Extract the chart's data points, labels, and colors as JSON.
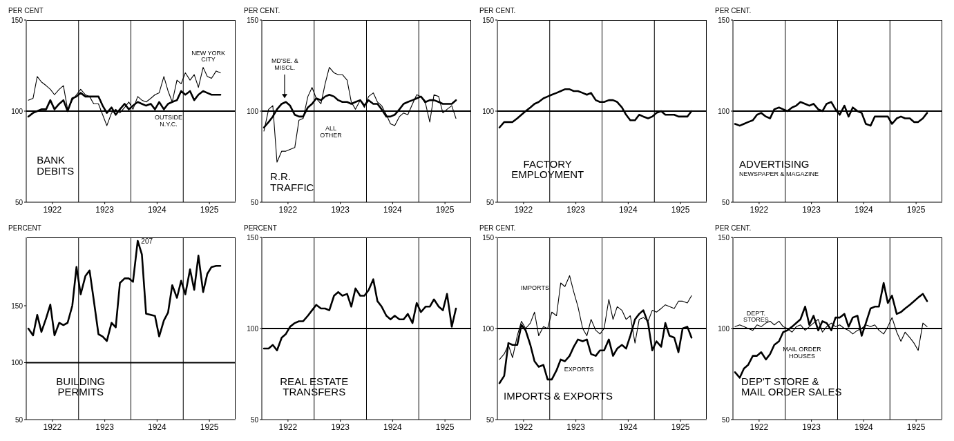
{
  "chart_data": [
    {
      "type": "line",
      "title": "BANK\nDEBITS",
      "ylabel": "PER CENT",
      "x": [
        1922.04,
        1922.13,
        1922.21,
        1922.29,
        1922.38,
        1922.46,
        1922.54,
        1922.63,
        1922.71,
        1922.79,
        1922.88,
        1922.96,
        1923.04,
        1923.13,
        1923.21,
        1923.29,
        1923.38,
        1923.46,
        1923.54,
        1923.63,
        1923.71,
        1923.79,
        1923.88,
        1923.96,
        1924.04,
        1924.13,
        1924.21,
        1924.29,
        1924.38,
        1924.46,
        1924.54,
        1924.63,
        1924.71,
        1924.79,
        1924.88,
        1924.96,
        1925.04,
        1925.13,
        1925.21,
        1925.29,
        1925.38,
        1925.46,
        1925.54,
        1925.63,
        1925.71
      ],
      "series": [
        {
          "name": "OUTSIDE\nN.Y.C.",
          "color": "#000000",
          "values": [
            97,
            99,
            100,
            101,
            101,
            106,
            101,
            104,
            106,
            100,
            107,
            108,
            110,
            108,
            108,
            108,
            108,
            103,
            99,
            102,
            98,
            101,
            104,
            101,
            103,
            105,
            104,
            103,
            104,
            101,
            105,
            101,
            104,
            105,
            106,
            111,
            109,
            111,
            106,
            109,
            111,
            110,
            109,
            109,
            109
          ]
        },
        {
          "name": "NEW YORK\nCITY",
          "color": "#000000",
          "values": [
            106,
            107,
            119,
            116,
            114,
            112,
            109,
            112,
            114,
            101,
            106,
            109,
            112,
            109,
            108,
            104,
            104,
            98,
            92,
            99,
            101,
            99,
            102,
            105,
            101,
            108,
            106,
            105,
            107,
            109,
            110,
            119,
            111,
            105,
            117,
            115,
            121,
            117,
            120,
            113,
            124,
            119,
            118,
            122,
            121
          ]
        }
      ],
      "xlim": [
        1922,
        1926
      ],
      "ylim": [
        50,
        150
      ],
      "yticks": [
        50,
        100,
        150
      ],
      "xticks": [
        {
          "value": 1922.5,
          "label": "1922"
        },
        {
          "value": 1923.5,
          "label": "1923"
        },
        {
          "value": 1924.5,
          "label": "1924"
        },
        {
          "value": 1925.5,
          "label": "1925"
        }
      ],
      "ref_lines": [
        {
          "axis": "y",
          "value": 100
        },
        {
          "axis": "x",
          "value": 1923
        },
        {
          "axis": "x",
          "value": 1924
        },
        {
          "axis": "x",
          "value": 1925
        }
      ]
    },
    {
      "type": "line",
      "title": "R.R.\nTRAFFIC",
      "ylabel": "PER CENT.",
      "x": [
        1922.04,
        1922.13,
        1922.21,
        1922.29,
        1922.38,
        1922.46,
        1922.54,
        1922.63,
        1922.71,
        1922.79,
        1922.88,
        1922.96,
        1923.04,
        1923.13,
        1923.21,
        1923.29,
        1923.38,
        1923.46,
        1923.54,
        1923.63,
        1923.71,
        1923.79,
        1923.88,
        1923.96,
        1924.04,
        1924.13,
        1924.21,
        1924.29,
        1924.38,
        1924.46,
        1924.54,
        1924.63,
        1924.71,
        1924.79,
        1924.88,
        1924.96,
        1925.04,
        1925.13,
        1925.21,
        1925.29,
        1925.38,
        1925.46,
        1925.54,
        1925.63,
        1925.71
      ],
      "series": [
        {
          "name": "MD'SE. &\nMISCL.",
          "color": "#000000",
          "values": [
            91,
            94,
            97,
            101,
            104,
            105,
            103,
            98,
            97,
            97,
            102,
            104,
            107,
            106,
            108,
            109,
            108,
            106,
            105,
            105,
            104,
            105,
            106,
            103,
            106,
            104,
            104,
            101,
            97,
            97,
            98,
            101,
            104,
            105,
            106,
            107,
            108,
            105,
            106,
            106,
            105,
            104,
            104,
            104,
            106
          ]
        },
        {
          "name": "ALL\nOTHER",
          "color": "#000000",
          "values": [
            89,
            101,
            103,
            72,
            78,
            78,
            79,
            80,
            95,
            96,
            108,
            113,
            107,
            104,
            115,
            124,
            121,
            120,
            120,
            117,
            105,
            101,
            106,
            102,
            108,
            110,
            105,
            103,
            98,
            93,
            92,
            97,
            99,
            98,
            104,
            109,
            108,
            104,
            94,
            109,
            108,
            99,
            101,
            103,
            96
          ]
        }
      ],
      "xlim": [
        1922,
        1926
      ],
      "ylim": [
        50,
        150
      ],
      "yticks": [
        50,
        100,
        150
      ],
      "xticks": [
        {
          "value": 1922.5,
          "label": "1922"
        },
        {
          "value": 1923.5,
          "label": "1923"
        },
        {
          "value": 1924.5,
          "label": "1924"
        },
        {
          "value": 1925.5,
          "label": "1925"
        }
      ],
      "ref_lines": [
        {
          "axis": "y",
          "value": 100
        },
        {
          "axis": "x",
          "value": 1923
        },
        {
          "axis": "x",
          "value": 1924
        },
        {
          "axis": "x",
          "value": 1925
        }
      ]
    },
    {
      "type": "line",
      "title": "FACTORY\nEMPLOYMENT",
      "ylabel": "PER CENT.",
      "x": [
        1922.04,
        1922.13,
        1922.21,
        1922.29,
        1922.38,
        1922.46,
        1922.54,
        1922.63,
        1922.71,
        1922.79,
        1922.88,
        1922.96,
        1923.04,
        1923.13,
        1923.21,
        1923.29,
        1923.38,
        1923.46,
        1923.54,
        1923.63,
        1923.71,
        1923.79,
        1923.88,
        1923.96,
        1924.04,
        1924.13,
        1924.21,
        1924.29,
        1924.38,
        1924.46,
        1924.54,
        1924.63,
        1924.71,
        1924.79,
        1924.88,
        1924.96,
        1925.04,
        1925.13,
        1925.21,
        1925.29,
        1925.38,
        1925.46,
        1925.54,
        1925.63,
        1925.71
      ],
      "series": [
        {
          "color": "#000000",
          "values": [
            91,
            94,
            94,
            94,
            96,
            98,
            100,
            102,
            104,
            105,
            107,
            108,
            109,
            110,
            111,
            112,
            112,
            111,
            111,
            110,
            109,
            110,
            106,
            105,
            105,
            106,
            106,
            105,
            102,
            98,
            95,
            95,
            98,
            97,
            96,
            97,
            99,
            100,
            98,
            98,
            98,
            97,
            97,
            97,
            100
          ]
        }
      ],
      "xlim": [
        1922,
        1926
      ],
      "ylim": [
        50,
        150
      ],
      "yticks": [
        50,
        100,
        150
      ],
      "xticks": [
        {
          "value": 1922.5,
          "label": "1922"
        },
        {
          "value": 1923.5,
          "label": "1923"
        },
        {
          "value": 1924.5,
          "label": "1924"
        },
        {
          "value": 1925.5,
          "label": "1925"
        }
      ],
      "ref_lines": [
        {
          "axis": "y",
          "value": 100
        },
        {
          "axis": "x",
          "value": 1923
        },
        {
          "axis": "x",
          "value": 1924
        },
        {
          "axis": "x",
          "value": 1925
        }
      ]
    },
    {
      "type": "line",
      "title": "ADVERTISING",
      "subtitle": "NEWSPAPER & MAGAZINE",
      "ylabel": "PER CENT.",
      "x": [
        1922.04,
        1922.13,
        1922.21,
        1922.29,
        1922.38,
        1922.46,
        1922.54,
        1922.63,
        1922.71,
        1922.79,
        1922.88,
        1922.96,
        1923.04,
        1923.13,
        1923.21,
        1923.29,
        1923.38,
        1923.46,
        1923.54,
        1923.63,
        1923.71,
        1923.79,
        1923.88,
        1923.96,
        1924.04,
        1924.13,
        1924.21,
        1924.29,
        1924.38,
        1924.46,
        1924.54,
        1924.63,
        1924.71,
        1924.79,
        1924.88,
        1924.96,
        1925.04,
        1925.13,
        1925.21,
        1925.29,
        1925.38,
        1925.46,
        1925.54,
        1925.63,
        1925.71
      ],
      "series": [
        {
          "color": "#000000",
          "values": [
            93,
            92,
            93,
            94,
            95,
            98,
            99,
            97,
            96,
            101,
            102,
            101,
            100,
            102,
            103,
            105,
            104,
            103,
            104,
            101,
            100,
            104,
            105,
            101,
            98,
            103,
            97,
            102,
            100,
            99,
            93,
            92,
            97,
            97,
            97,
            97,
            93,
            96,
            97,
            96,
            96,
            94,
            94,
            96,
            99
          ]
        }
      ],
      "xlim": [
        1922,
        1926
      ],
      "ylim": [
        50,
        150
      ],
      "yticks": [
        50,
        100,
        150
      ],
      "xticks": [
        {
          "value": 1922.5,
          "label": "1922"
        },
        {
          "value": 1923.5,
          "label": "1923"
        },
        {
          "value": 1924.5,
          "label": "1924"
        },
        {
          "value": 1925.5,
          "label": "1925"
        }
      ],
      "ref_lines": [
        {
          "axis": "y",
          "value": 100
        },
        {
          "axis": "x",
          "value": 1923
        },
        {
          "axis": "x",
          "value": 1924
        },
        {
          "axis": "x",
          "value": 1925
        }
      ]
    },
    {
      "type": "line",
      "title": "BUILDING\nPERMITS",
      "ylabel": "PERCENT",
      "x": [
        1922.04,
        1922.13,
        1922.21,
        1922.29,
        1922.38,
        1922.46,
        1922.54,
        1922.63,
        1922.71,
        1922.79,
        1922.88,
        1922.96,
        1923.04,
        1923.13,
        1923.21,
        1923.29,
        1923.38,
        1923.46,
        1923.54,
        1923.63,
        1923.71,
        1923.79,
        1923.88,
        1923.96,
        1924.04,
        1924.13,
        1924.21,
        1924.29,
        1924.38,
        1924.46,
        1924.54,
        1924.63,
        1924.71,
        1924.79,
        1924.88,
        1924.96,
        1925.04,
        1925.13,
        1925.21,
        1925.29,
        1925.38,
        1925.46,
        1925.54,
        1925.63,
        1925.71
      ],
      "series": [
        {
          "color": "#000000",
          "values": [
            130,
            124,
            142,
            127,
            139,
            151,
            124,
            135,
            133,
            135,
            150,
            184,
            160,
            176,
            181,
            155,
            125,
            123,
            119,
            135,
            131,
            170,
            174,
            174,
            171,
            207,
            195,
            143,
            142,
            141,
            123,
            137,
            144,
            168,
            157,
            172,
            160,
            182,
            164,
            194,
            162,
            178,
            184,
            185,
            185
          ]
        }
      ],
      "xlim": [
        1922,
        1926
      ],
      "ylim": [
        50,
        210
      ],
      "yticks": [
        50,
        100,
        150
      ],
      "xticks": [
        {
          "value": 1922.5,
          "label": "1922"
        },
        {
          "value": 1923.5,
          "label": "1923"
        },
        {
          "value": 1924.5,
          "label": "1924"
        },
        {
          "value": 1925.5,
          "label": "1925"
        }
      ],
      "ref_lines": [
        {
          "axis": "y",
          "value": 100
        },
        {
          "axis": "x",
          "value": 1923
        },
        {
          "axis": "x",
          "value": 1924
        },
        {
          "axis": "x",
          "value": 1925
        }
      ],
      "annotations": [
        {
          "text": "207",
          "x": 1924.13,
          "y": 207
        }
      ]
    },
    {
      "type": "line",
      "title": "REAL ESTATE\nTRANSFERS",
      "ylabel": "PERCENT",
      "x": [
        1922.04,
        1922.13,
        1922.21,
        1922.29,
        1922.38,
        1922.46,
        1922.54,
        1922.63,
        1922.71,
        1922.79,
        1922.88,
        1922.96,
        1923.04,
        1923.13,
        1923.21,
        1923.29,
        1923.38,
        1923.46,
        1923.54,
        1923.63,
        1923.71,
        1923.79,
        1923.88,
        1923.96,
        1924.04,
        1924.13,
        1924.21,
        1924.29,
        1924.38,
        1924.46,
        1924.54,
        1924.63,
        1924.71,
        1924.79,
        1924.88,
        1924.96,
        1925.04,
        1925.13,
        1925.21,
        1925.29,
        1925.38,
        1925.46,
        1925.54,
        1925.63,
        1925.71
      ],
      "series": [
        {
          "color": "#000000",
          "values": [
            89,
            89,
            91,
            88,
            95,
            97,
            101,
            103,
            104,
            104,
            107,
            110,
            113,
            111,
            111,
            110,
            118,
            120,
            118,
            119,
            112,
            122,
            118,
            118,
            121,
            127,
            115,
            112,
            107,
            105,
            107,
            105,
            105,
            108,
            103,
            114,
            109,
            112,
            112,
            116,
            112,
            110,
            119,
            101,
            111
          ]
        }
      ],
      "xlim": [
        1922,
        1926
      ],
      "ylim": [
        50,
        150
      ],
      "yticks": [
        50,
        100,
        150
      ],
      "xticks": [
        {
          "value": 1922.5,
          "label": "1922"
        },
        {
          "value": 1923.5,
          "label": "1923"
        },
        {
          "value": 1924.5,
          "label": "1924"
        },
        {
          "value": 1925.5,
          "label": "1925"
        }
      ],
      "ref_lines": [
        {
          "axis": "y",
          "value": 100
        },
        {
          "axis": "x",
          "value": 1923
        },
        {
          "axis": "x",
          "value": 1924
        },
        {
          "axis": "x",
          "value": 1925
        }
      ]
    },
    {
      "type": "line",
      "title": "IMPORTS & EXPORTS",
      "ylabel": "PER CENT.",
      "x": [
        1922.04,
        1922.13,
        1922.21,
        1922.29,
        1922.38,
        1922.46,
        1922.54,
        1922.63,
        1922.71,
        1922.79,
        1922.88,
        1922.96,
        1923.04,
        1923.13,
        1923.21,
        1923.29,
        1923.38,
        1923.46,
        1923.54,
        1923.63,
        1923.71,
        1923.79,
        1923.88,
        1923.96,
        1924.04,
        1924.13,
        1924.21,
        1924.29,
        1924.38,
        1924.46,
        1924.54,
        1924.63,
        1924.71,
        1924.79,
        1924.88,
        1924.96,
        1925.04,
        1925.13,
        1925.21,
        1925.29,
        1925.38,
        1925.46,
        1925.54,
        1925.63,
        1925.71
      ],
      "series": [
        {
          "name": "EXPORTS",
          "color": "#000000",
          "values": [
            70,
            74,
            92,
            91,
            91,
            102,
            99,
            91,
            82,
            79,
            80,
            72,
            72,
            77,
            83,
            82,
            85,
            90,
            94,
            93,
            94,
            86,
            85,
            88,
            88,
            94,
            85,
            89,
            91,
            89,
            96,
            105,
            108,
            110,
            103,
            88,
            93,
            90,
            103,
            96,
            95,
            87,
            100,
            101,
            95
          ]
        },
        {
          "name": "IMPORTS",
          "color": "#000000",
          "values": [
            83,
            86,
            91,
            84,
            96,
            104,
            100,
            103,
            109,
            96,
            101,
            100,
            109,
            107,
            125,
            123,
            129,
            120,
            112,
            100,
            96,
            105,
            99,
            97,
            100,
            116,
            105,
            112,
            110,
            105,
            107,
            92,
            105,
            106,
            104,
            110,
            109,
            111,
            113,
            112,
            111,
            115,
            115,
            114,
            118
          ]
        }
      ],
      "xlim": [
        1922,
        1926
      ],
      "ylim": [
        50,
        150
      ],
      "yticks": [
        50,
        100,
        150
      ],
      "xticks": [
        {
          "value": 1922.5,
          "label": "1922"
        },
        {
          "value": 1923.5,
          "label": "1923"
        },
        {
          "value": 1924.5,
          "label": "1924"
        },
        {
          "value": 1925.5,
          "label": "1925"
        }
      ],
      "ref_lines": [
        {
          "axis": "y",
          "value": 100
        },
        {
          "axis": "x",
          "value": 1923
        },
        {
          "axis": "x",
          "value": 1924
        },
        {
          "axis": "x",
          "value": 1925
        }
      ]
    },
    {
      "type": "line",
      "title": "DEP'T STORE &\nMAIL ORDER SALES",
      "ylabel": "PER CENT.",
      "x": [
        1922.04,
        1922.13,
        1922.21,
        1922.29,
        1922.38,
        1922.46,
        1922.54,
        1922.63,
        1922.71,
        1922.79,
        1922.88,
        1922.96,
        1923.04,
        1923.13,
        1923.21,
        1923.29,
        1923.38,
        1923.46,
        1923.54,
        1923.63,
        1923.71,
        1923.79,
        1923.88,
        1923.96,
        1924.04,
        1924.13,
        1924.21,
        1924.29,
        1924.38,
        1924.46,
        1924.54,
        1924.63,
        1924.71,
        1924.79,
        1924.88,
        1924.96,
        1925.04,
        1925.13,
        1925.21,
        1925.29,
        1925.38,
        1925.46,
        1925.54,
        1925.63,
        1925.71
      ],
      "series": [
        {
          "name": "MAIL ORDER\nHOUSES",
          "color": "#000000",
          "values": [
            76,
            73,
            78,
            80,
            85,
            85,
            87,
            83,
            86,
            91,
            93,
            98,
            99,
            101,
            103,
            105,
            112,
            102,
            107,
            99,
            104,
            103,
            99,
            106,
            106,
            108,
            101,
            106,
            107,
            96,
            103,
            111,
            112,
            112,
            125,
            114,
            118,
            108,
            109,
            111,
            113,
            115,
            117,
            119,
            115
          ]
        },
        {
          "name": "DEP'T.\nSTORES",
          "color": "#000000",
          "values": [
            101,
            102,
            101,
            100,
            99,
            102,
            101,
            103,
            104,
            102,
            104,
            101,
            100,
            98,
            101,
            102,
            99,
            101,
            103,
            105,
            98,
            101,
            103,
            101,
            102,
            100,
            99,
            97,
            99,
            100,
            102,
            101,
            102,
            99,
            97,
            101,
            106,
            98,
            93,
            98,
            95,
            92,
            88,
            103,
            101
          ]
        }
      ],
      "xlim": [
        1922,
        1926
      ],
      "ylim": [
        50,
        150
      ],
      "yticks": [
        50,
        100,
        150
      ],
      "xticks": [
        {
          "value": 1922.5,
          "label": "1922"
        },
        {
          "value": 1923.5,
          "label": "1923"
        },
        {
          "value": 1924.5,
          "label": "1924"
        },
        {
          "value": 1925.5,
          "label": "1925"
        }
      ],
      "ref_lines": [
        {
          "axis": "y",
          "value": 100
        },
        {
          "axis": "x",
          "value": 1923
        },
        {
          "axis": "x",
          "value": 1924
        },
        {
          "axis": "x",
          "value": 1925
        }
      ]
    }
  ]
}
